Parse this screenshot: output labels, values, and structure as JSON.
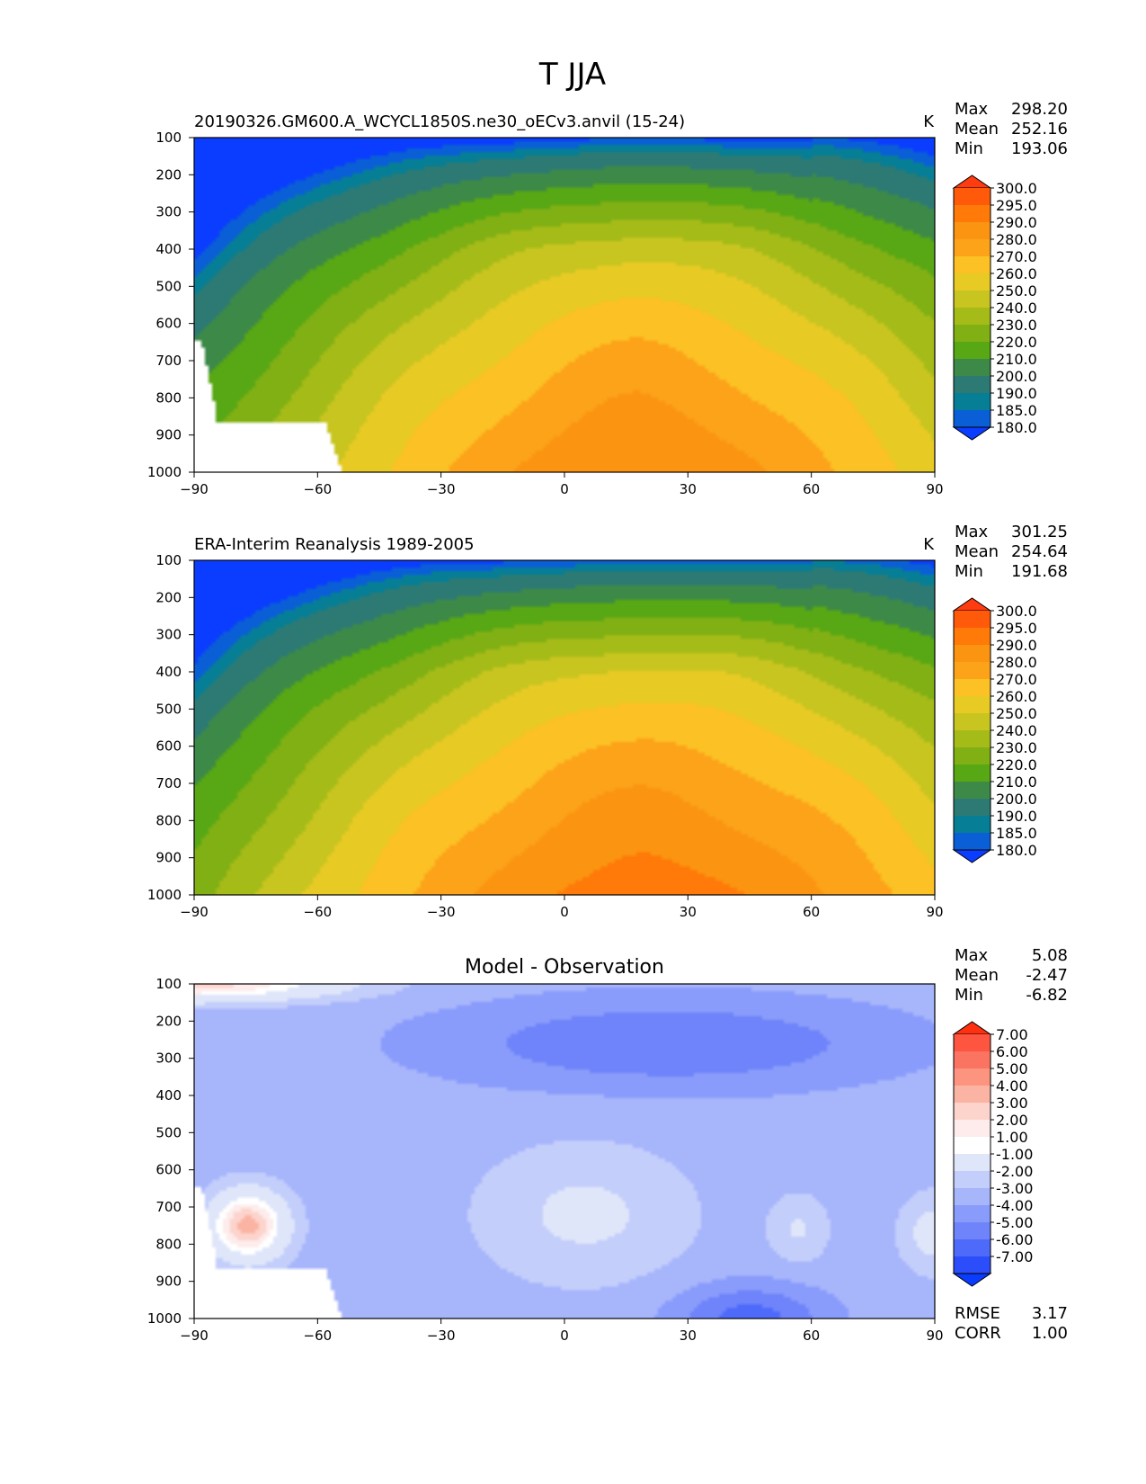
{
  "figure": {
    "title": "T JJA"
  },
  "chart_data": [
    {
      "type": "contour",
      "id": "model",
      "title_left": "20190326.GM600.A_WCYCL1850S.ne30_oECv3.anvil (15-24)",
      "units": "K",
      "title_center": "",
      "stats": [
        {
          "label": "Max",
          "value": "298.20"
        },
        {
          "label": "Mean",
          "value": "252.16"
        },
        {
          "label": "Min",
          "value": "193.06"
        }
      ],
      "xlim": [
        -90,
        90
      ],
      "ylim": [
        1000,
        100
      ],
      "x_ticks": [
        "−90",
        "−60",
        "−30",
        "0",
        "30",
        "60",
        "90"
      ],
      "y_ticks": [
        "100",
        "200",
        "300",
        "400",
        "500",
        "600",
        "700",
        "800",
        "900",
        "1000"
      ],
      "colorbar": {
        "labels": [
          "300.0",
          "295.0",
          "290.0",
          "280.0",
          "270.0",
          "260.0",
          "250.0",
          "240.0",
          "230.0",
          "220.0",
          "210.0",
          "200.0",
          "190.0",
          "185.0",
          "180.0"
        ],
        "colors": [
          "#ff3b10",
          "#ff5a0a",
          "#ff7a08",
          "#fb9411",
          "#fca319",
          "#fcc124",
          "#e8ca25",
          "#c8c520",
          "#a5bb18",
          "#80b014",
          "#58a714",
          "#3d8a48",
          "#2d7a74",
          "#067f96",
          "#0a5fd6",
          "#0a3dff"
        ]
      },
      "field": {
        "base": 290,
        "lat_amp": 50,
        "lat_exp": 1.5,
        "asym": 4,
        "peak_lat": 18,
        "lapse": 75,
        "cold_point": 198,
        "tropo_lat": 15,
        "tropo_amp": 18,
        "polar_warm": 12,
        "ripple": 1.5
      },
      "mask": "antarctic"
    },
    {
      "type": "contour",
      "id": "obs",
      "title_left": "ERA-Interim Reanalysis 1989-2005",
      "units": "K",
      "title_center": "",
      "stats": [
        {
          "label": "Max",
          "value": "301.25"
        },
        {
          "label": "Mean",
          "value": "254.64"
        },
        {
          "label": "Min",
          "value": "191.68"
        }
      ],
      "xlim": [
        -90,
        90
      ],
      "ylim": [
        1000,
        100
      ],
      "x_ticks": [
        "−90",
        "−60",
        "−30",
        "0",
        "30",
        "60",
        "90"
      ],
      "y_ticks": [
        "100",
        "200",
        "300",
        "400",
        "500",
        "600",
        "700",
        "800",
        "900",
        "1000"
      ],
      "colorbar": {
        "labels": [
          "300.0",
          "295.0",
          "290.0",
          "280.0",
          "270.0",
          "260.0",
          "250.0",
          "240.0",
          "230.0",
          "220.0",
          "210.0",
          "200.0",
          "190.0",
          "185.0",
          "180.0"
        ],
        "colors": [
          "#ff3b10",
          "#ff5a0a",
          "#ff7a08",
          "#fb9411",
          "#fca319",
          "#fcc124",
          "#e8ca25",
          "#c8c520",
          "#a5bb18",
          "#80b014",
          "#58a714",
          "#3d8a48",
          "#2d7a74",
          "#067f96",
          "#0a5fd6",
          "#0a3dff"
        ]
      },
      "field": {
        "base": 295,
        "lat_amp": 47,
        "lat_exp": 1.6,
        "asym": 5,
        "peak_lat": 20,
        "lapse": 75,
        "cold_point": 196,
        "tropo_lat": 15,
        "tropo_amp": 18,
        "polar_warm": 12,
        "ripple": 1.5
      },
      "mask": "none"
    },
    {
      "type": "contour",
      "id": "diff",
      "title_left": "",
      "units": "",
      "title_center": "Model - Observation",
      "stats": [
        {
          "label": "Max",
          "value": "5.08"
        },
        {
          "label": "Mean",
          "value": "-2.47"
        },
        {
          "label": "Min",
          "value": "-6.82"
        }
      ],
      "extra_stats": [
        {
          "label": "RMSE",
          "value": "3.17"
        },
        {
          "label": "CORR",
          "value": "1.00"
        }
      ],
      "xlim": [
        -90,
        90
      ],
      "ylim": [
        1000,
        100
      ],
      "x_ticks": [
        "−90",
        "−60",
        "−30",
        "0",
        "30",
        "60",
        "90"
      ],
      "y_ticks": [
        "100",
        "200",
        "300",
        "400",
        "500",
        "600",
        "700",
        "800",
        "900",
        "1000"
      ],
      "colorbar": {
        "labels": [
          "7.00",
          "6.00",
          "5.00",
          "4.00",
          "3.00",
          "2.00",
          "1.00",
          "-1.00",
          "-2.00",
          "-3.00",
          "-4.00",
          "-5.00",
          "-6.00",
          "-7.00"
        ],
        "colors": [
          "#ff3010",
          "#fd5540",
          "#fb7462",
          "#fc9480",
          "#fbb4a4",
          "#fcd4cc",
          "#fdeceb",
          "#ffffff",
          "#dfe6fa",
          "#c3cefb",
          "#a7b5fb",
          "#8a9cfb",
          "#6f84fa",
          "#4e6afa",
          "#2b4dfa",
          "#0a3cff"
        ]
      },
      "field": {
        "base": -2.5,
        "upper_cold_amp": 2.5,
        "upper_cold_lat": 25,
        "trop_warm_amp": 1.8,
        "polar_top_warm": 6,
        "sh_warm_amp": 7,
        "sh_warm_lat": -77,
        "sh_warm_plev": 750,
        "nh_surface_cold": 3.0
      },
      "mask": "antarctic"
    }
  ]
}
